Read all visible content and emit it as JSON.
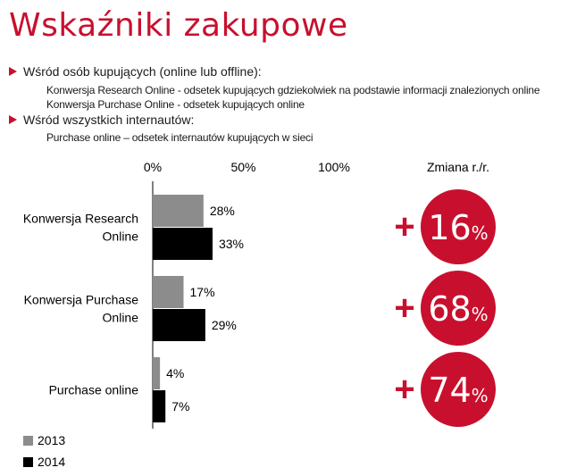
{
  "header": {
    "title": "Wskaźniki zakupowe"
  },
  "notes": {
    "bullet1": "Wśród osób kupujących (online lub offline):",
    "bullet1_sub1": "Konwersja Research Online - odsetek kupujących gdziekolwiek na podstawie informacji znalezionych online",
    "bullet1_sub2": "Konwersja Purchase Online - odsetek kupujących online",
    "bullet2": "Wśród wszystkich internautów:",
    "bullet2_sub1": "Purchase online – odsetek internautów kupujących w sieci"
  },
  "colors": {
    "accent": "#c8102e",
    "series_2013": "#8c8c8c",
    "series_2014": "#000000"
  },
  "chart_data": {
    "type": "bar",
    "orientation": "horizontal",
    "categories": [
      "Konwersja Research Online",
      "Konwersja Purchase Online",
      "Purchase online"
    ],
    "category_lines": [
      [
        "Konwersja Research",
        "Online"
      ],
      [
        "Konwersja Purchase",
        "Online"
      ],
      [
        "Purchase online"
      ]
    ],
    "series": [
      {
        "name": "2013",
        "values": [
          28,
          17,
          4
        ],
        "labels": [
          "28%",
          "17%",
          "4%"
        ]
      },
      {
        "name": "2014",
        "values": [
          33,
          29,
          7
        ],
        "labels": [
          "33%",
          "29%",
          "7%"
        ]
      }
    ],
    "xlim": [
      0,
      100
    ],
    "xticks": [
      "0%",
      "50%",
      "100%"
    ],
    "grid": false,
    "legend": "bottom-left",
    "change_header": "Zmiana r./r.",
    "changes": [
      {
        "sign": "+",
        "value": "16",
        "unit": "%"
      },
      {
        "sign": "+",
        "value": "68",
        "unit": "%"
      },
      {
        "sign": "+",
        "value": "74",
        "unit": "%"
      }
    ]
  }
}
